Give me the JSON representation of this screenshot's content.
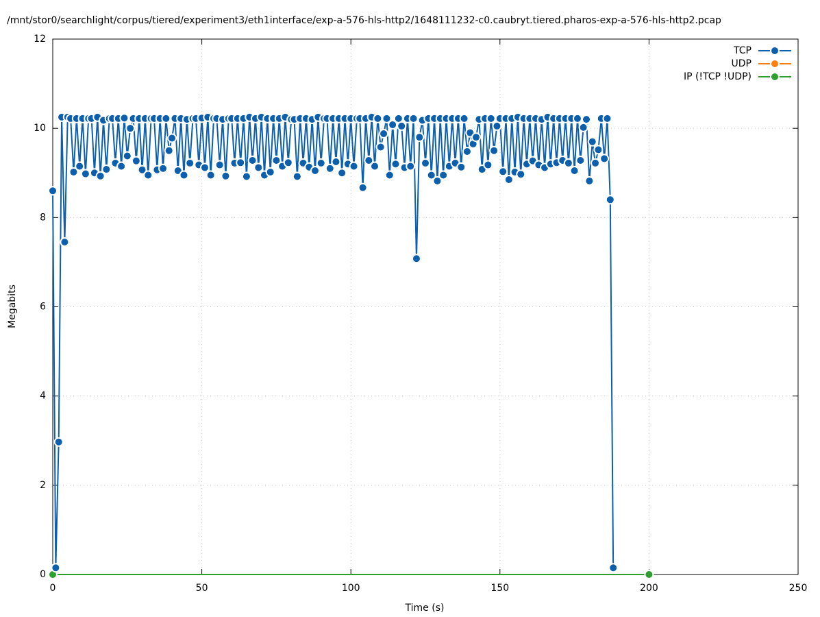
{
  "chart_data": {
    "type": "line",
    "title": "/mnt/stor0/searchlight/corpus/tiered/experiment3/eth1interface/exp-a-576-hls-http2/1648111232-c0.caubryt.tiered.pharos-exp-a-576-hls-http2.pcap",
    "x_label": "Time (s)",
    "y_label": "Megabits",
    "xlim": [
      0,
      250
    ],
    "xticks": [
      0,
      50,
      100,
      150,
      200,
      250
    ],
    "ylim": [
      0,
      12
    ],
    "yticks": [
      0,
      2,
      4,
      6,
      8,
      10,
      12
    ],
    "grid": true,
    "legend": "top-right",
    "series": [
      {
        "name": "TCP",
        "color": "#0b5fad",
        "x": [
          0,
          1,
          2,
          3,
          4,
          5,
          6,
          7,
          8,
          9,
          10,
          11,
          12,
          13,
          14,
          15,
          16,
          17,
          18,
          19,
          20,
          21,
          22,
          23,
          24,
          25,
          26,
          27,
          28,
          29,
          30,
          31,
          32,
          33,
          34,
          35,
          36,
          37,
          38,
          39,
          40,
          41,
          42,
          43,
          44,
          45,
          46,
          47,
          48,
          49,
          50,
          51,
          52,
          53,
          54,
          55,
          56,
          57,
          58,
          59,
          60,
          61,
          62,
          63,
          64,
          65,
          66,
          67,
          68,
          69,
          70,
          71,
          72,
          73,
          74,
          75,
          76,
          77,
          78,
          79,
          80,
          81,
          82,
          83,
          84,
          85,
          86,
          87,
          88,
          89,
          90,
          91,
          92,
          93,
          94,
          95,
          96,
          97,
          98,
          99,
          100,
          101,
          102,
          103,
          104,
          105,
          106,
          107,
          108,
          109,
          110,
          111,
          112,
          113,
          114,
          115,
          116,
          117,
          118,
          119,
          120,
          121,
          122,
          123,
          124,
          125,
          126,
          127,
          128,
          129,
          130,
          131,
          132,
          133,
          134,
          135,
          136,
          137,
          138,
          139,
          140,
          141,
          142,
          143,
          144,
          145,
          146,
          147,
          148,
          149,
          150,
          151,
          152,
          153,
          154,
          155,
          156,
          157,
          158,
          159,
          160,
          161,
          162,
          163,
          164,
          165,
          166,
          167,
          168,
          169,
          170,
          171,
          172,
          173,
          174,
          175,
          176,
          177,
          178,
          179,
          180,
          181,
          182,
          183,
          184,
          185,
          186,
          187,
          188
        ],
        "values": [
          8.6,
          0.15,
          2.97,
          10.25,
          7.45,
          10.25,
          10.22,
          9.02,
          10.22,
          9.15,
          10.22,
          8.98,
          10.22,
          10.22,
          9.0,
          10.25,
          8.93,
          10.18,
          9.08,
          10.22,
          10.22,
          9.22,
          10.22,
          9.15,
          10.23,
          9.38,
          10.0,
          10.22,
          9.27,
          10.22,
          9.07,
          10.22,
          8.95,
          10.22,
          10.22,
          9.07,
          10.22,
          9.1,
          10.22,
          9.5,
          9.78,
          10.22,
          9.05,
          10.22,
          8.95,
          10.2,
          9.22,
          10.22,
          10.22,
          9.18,
          10.23,
          9.12,
          10.25,
          8.95,
          10.22,
          10.22,
          9.18,
          10.2,
          8.93,
          10.22,
          10.22,
          9.22,
          10.22,
          9.23,
          10.22,
          8.92,
          10.25,
          9.28,
          10.22,
          9.12,
          10.25,
          8.95,
          10.22,
          9.02,
          10.22,
          9.28,
          10.22,
          9.15,
          10.25,
          9.23,
          10.2,
          10.2,
          8.92,
          10.22,
          9.22,
          10.22,
          9.13,
          10.2,
          9.05,
          10.25,
          9.22,
          10.22,
          10.22,
          9.1,
          10.22,
          9.25,
          10.22,
          9.0,
          10.22,
          9.2,
          10.22,
          9.15,
          10.22,
          10.22,
          8.67,
          10.22,
          9.28,
          10.25,
          9.15,
          10.22,
          9.58,
          9.88,
          10.22,
          8.95,
          10.08,
          9.2,
          10.22,
          10.05,
          9.12,
          10.22,
          9.15,
          10.22,
          7.08,
          9.8,
          10.18,
          9.22,
          10.22,
          8.95,
          10.22,
          8.82,
          10.22,
          8.95,
          10.22,
          9.15,
          10.22,
          9.22,
          10.22,
          9.13,
          10.22,
          9.48,
          9.9,
          9.65,
          9.8,
          10.2,
          9.08,
          10.22,
          9.18,
          10.22,
          9.5,
          10.05,
          10.22,
          9.03,
          10.22,
          8.85,
          10.22,
          9.02,
          10.25,
          8.97,
          10.22,
          9.2,
          10.22,
          9.27,
          10.22,
          9.18,
          10.2,
          9.12,
          10.25,
          9.2,
          10.22,
          9.23,
          10.22,
          9.28,
          10.22,
          9.22,
          10.22,
          9.05,
          10.22,
          9.28,
          10.02,
          10.2,
          8.82,
          9.7,
          9.22,
          9.52,
          10.22,
          9.32,
          10.22,
          8.4,
          0.15
        ]
      },
      {
        "name": "UDP",
        "color": "#ff7f0e",
        "x": [],
        "values": []
      },
      {
        "name": "IP (!TCP  !UDP)",
        "color": "#2ca02c",
        "x": [
          0,
          200
        ],
        "values": [
          0,
          0
        ]
      }
    ]
  }
}
